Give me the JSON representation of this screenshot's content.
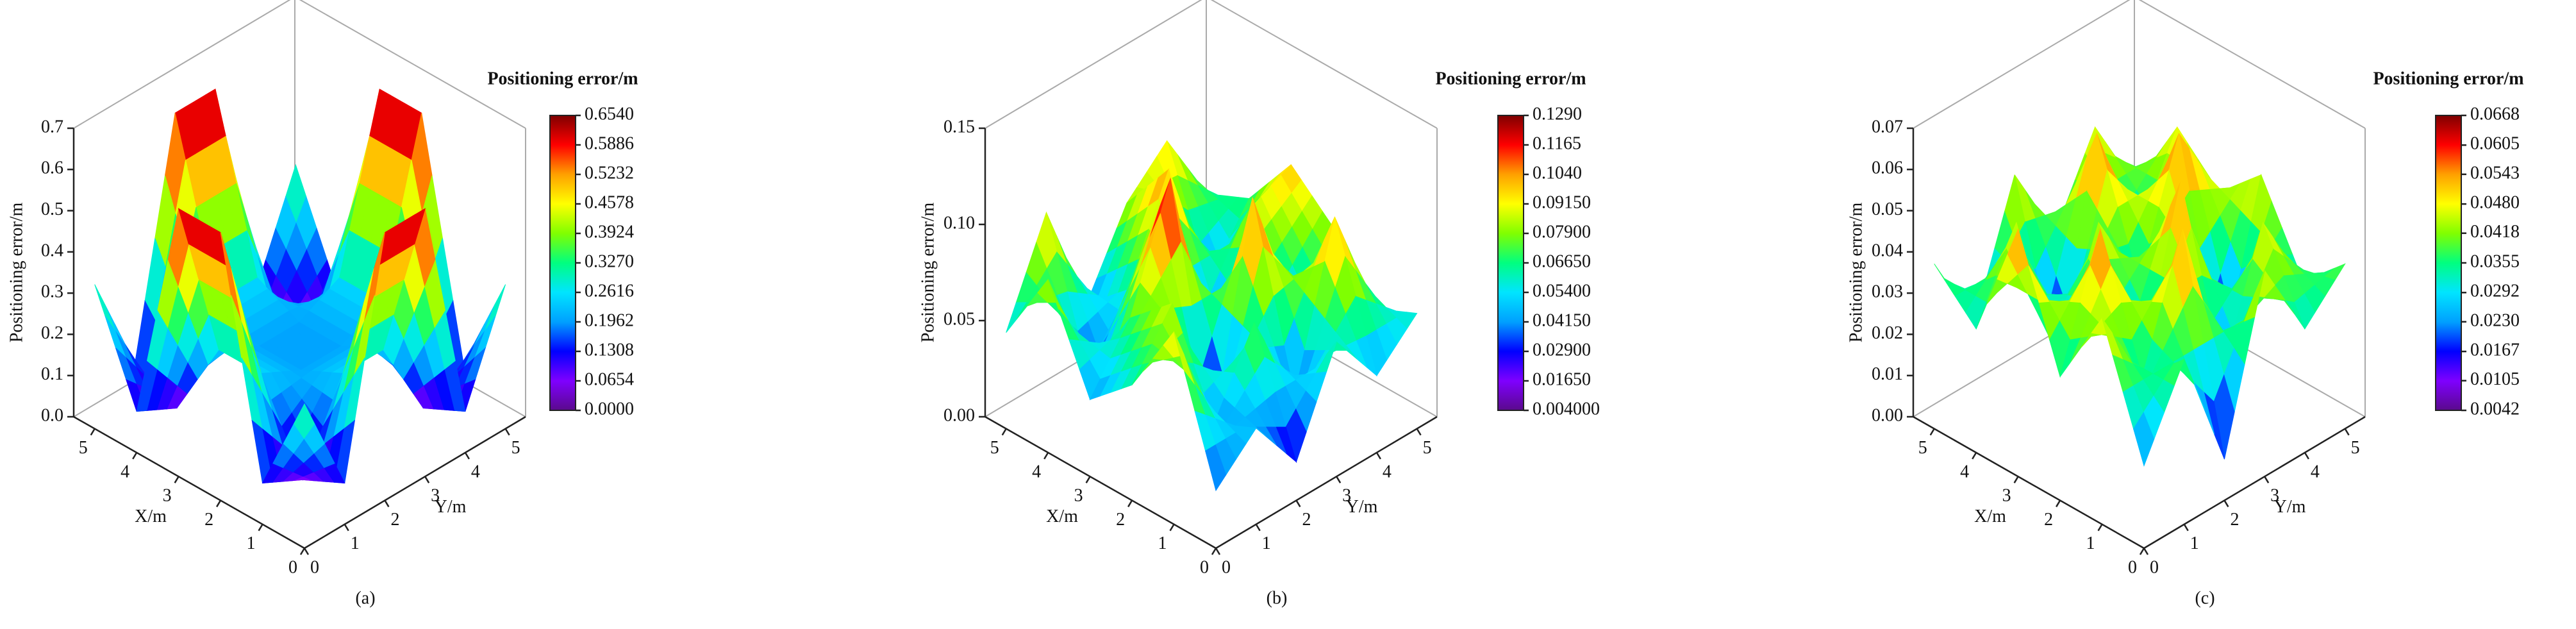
{
  "chart_data": [
    {
      "type": "surface3d",
      "panel_label": "(a)",
      "zlabel": "Positioning error/m",
      "xlabel": "X/m",
      "ylabel": "Y/m",
      "colorbar_title": "Positioning error/m",
      "x": [
        0,
        1,
        2,
        3,
        4,
        5
      ],
      "y": [
        0,
        1,
        2,
        3,
        4,
        5
      ],
      "z": [
        [
          0.35,
          0.1,
          0.65,
          0.65,
          0.1,
          0.35
        ],
        [
          0.1,
          0.05,
          0.25,
          0.25,
          0.05,
          0.1
        ],
        [
          0.65,
          0.25,
          0.2,
          0.2,
          0.25,
          0.65
        ],
        [
          0.65,
          0.25,
          0.2,
          0.2,
          0.25,
          0.65
        ],
        [
          0.1,
          0.05,
          0.25,
          0.25,
          0.05,
          0.1
        ],
        [
          0.35,
          0.1,
          0.65,
          0.65,
          0.1,
          0.35
        ]
      ],
      "xlim": [
        0,
        5.5
      ],
      "ylim": [
        0,
        5.5
      ],
      "zlim": [
        0,
        0.7
      ],
      "xticks": [
        0,
        1,
        2,
        3,
        4,
        5
      ],
      "yticks": [
        0,
        1,
        2,
        3,
        4,
        5
      ],
      "zticks": [
        {
          "value": 0,
          "label": "0.0"
        },
        0.1,
        0.2,
        0.3,
        0.4,
        0.5,
        0.6,
        0.7
      ],
      "cticks": [
        {
          "value": 0,
          "label": "0.0000"
        },
        0.0654,
        0.1308,
        0.1962,
        0.2616,
        {
          "value": 0.327,
          "label": "0.3270"
        },
        0.3924,
        0.4578,
        0.5232,
        0.5886,
        {
          "value": 0.654,
          "label": "0.6540"
        }
      ],
      "colormap": [
        "#5a0a8c",
        "#7f00ff",
        "#0000ff",
        "#00a0ff",
        "#00e5ff",
        "#00ff80",
        "#80ff00",
        "#ffff00",
        "#ffa000",
        "#ff0000",
        "#7f0000"
      ]
    },
    {
      "type": "surface3d",
      "panel_label": "(b)",
      "zlabel": "Positioning error/m",
      "xlabel": "X/m",
      "ylabel": "Y/m",
      "colorbar_title": "Positioning error/m",
      "x": [
        0,
        1,
        2,
        3,
        4,
        5
      ],
      "y": [
        0,
        1,
        2,
        3,
        4,
        5
      ],
      "z": [
        [
          0.03,
          0.05,
          0.02,
          0.07,
          0.04,
          0.06
        ],
        [
          0.1,
          0.04,
          0.08,
          0.03,
          0.11,
          0.05
        ],
        [
          0.06,
          0.09,
          0.01,
          0.12,
          0.05,
          0.08
        ],
        [
          0.04,
          0.07,
          0.13,
          0.02,
          0.09,
          0.1
        ],
        [
          0.09,
          0.03,
          0.06,
          0.11,
          0.04,
          0.07
        ],
        [
          0.05,
          0.1,
          0.04,
          0.08,
          0.1,
          0.06
        ]
      ],
      "xlim": [
        0,
        5.5
      ],
      "ylim": [
        0,
        5.5
      ],
      "zlim": [
        0,
        0.15
      ],
      "xticks": [
        0,
        1,
        2,
        3,
        4,
        5
      ],
      "yticks": [
        0,
        1,
        2,
        3,
        4,
        5
      ],
      "zticks": [
        {
          "value": 0,
          "label": "0.00"
        },
        0.05,
        {
          "value": 0.1,
          "label": "0.10"
        },
        0.15
      ],
      "cticks": [
        {
          "value": 0.004,
          "label": "0.004000"
        },
        {
          "value": 0.0165,
          "label": "0.01650"
        },
        {
          "value": 0.029,
          "label": "0.02900"
        },
        {
          "value": 0.0415,
          "label": "0.04150"
        },
        {
          "value": 0.054,
          "label": "0.05400"
        },
        {
          "value": 0.0665,
          "label": "0.06650"
        },
        {
          "value": 0.079,
          "label": "0.07900"
        },
        {
          "value": 0.0915,
          "label": "0.09150"
        },
        {
          "value": 0.104,
          "label": "0.1040"
        },
        0.1165,
        {
          "value": 0.129,
          "label": "0.1290"
        }
      ],
      "colormap": [
        "#5a0a8c",
        "#7f00ff",
        "#0000ff",
        "#00a0ff",
        "#00e5ff",
        "#00ff80",
        "#80ff00",
        "#ffff00",
        "#ffa000",
        "#ff0000",
        "#7f0000"
      ]
    },
    {
      "type": "surface3d",
      "panel_label": "(c)",
      "zlabel": "Positioning error/m",
      "xlabel": "X/m",
      "ylabel": "Y/m",
      "colorbar_title": "Positioning error/m",
      "x": [
        0,
        1,
        2,
        3,
        4,
        5
      ],
      "y": [
        0,
        1,
        2,
        3,
        4,
        5
      ],
      "z": [
        [
          0.02,
          0.04,
          0.01,
          0.05,
          0.03,
          0.04
        ],
        [
          0.05,
          0.03,
          0.06,
          0.02,
          0.05,
          0.03
        ],
        [
          0.03,
          0.06,
          0.02,
          0.06,
          0.01,
          0.05
        ],
        [
          0.06,
          0.02,
          0.05,
          0.03,
          0.06,
          0.04
        ],
        [
          0.03,
          0.05,
          0.01,
          0.06,
          0.03,
          0.05
        ],
        [
          0.04,
          0.02,
          0.05,
          0.03,
          0.05,
          0.03
        ]
      ],
      "xlim": [
        0,
        5.5
      ],
      "ylim": [
        0,
        5.5
      ],
      "zlim": [
        0,
        0.07
      ],
      "xticks": [
        0,
        1,
        2,
        3,
        4,
        5
      ],
      "yticks": [
        0,
        1,
        2,
        3,
        4,
        5
      ],
      "zticks": [
        {
          "value": 0,
          "label": "0.00"
        },
        0.01,
        0.02,
        0.03,
        0.04,
        0.05,
        0.06,
        0.07
      ],
      "cticks": [
        0.0042,
        0.0105,
        0.0167,
        {
          "value": 0.023,
          "label": "0.0230"
        },
        0.0292,
        0.0355,
        0.0418,
        {
          "value": 0.048,
          "label": "0.0480"
        },
        0.0543,
        0.0605,
        0.0668
      ],
      "colormap": [
        "#5a0a8c",
        "#7f00ff",
        "#0000ff",
        "#00a0ff",
        "#00e5ff",
        "#00ff80",
        "#80ff00",
        "#ffff00",
        "#ffa000",
        "#ff0000",
        "#7f0000"
      ]
    }
  ]
}
